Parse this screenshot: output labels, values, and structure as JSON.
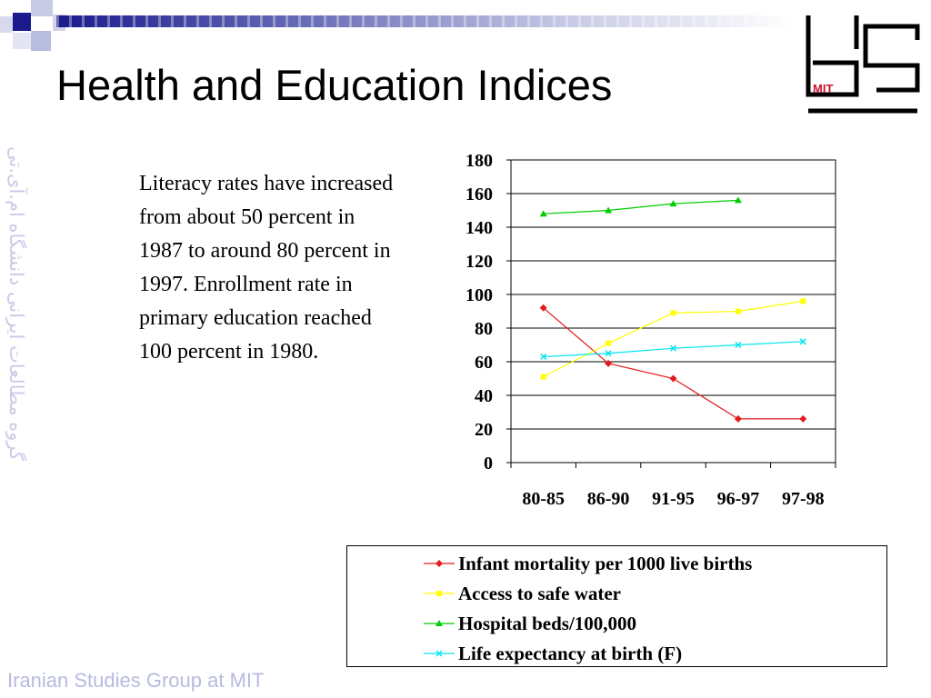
{
  "slide": {
    "title": "Health and Education Indices",
    "body_text": "Literacy rates have increased from about 50 percent in 1987 to around 80 percent in 1997. Enrollment rate in primary education reached 100 percent in 1980.",
    "footer": "Iranian Studies Group at MIT",
    "side_text": "گروه مطالعات ایرانی دانشگاه ام.آی.تی",
    "logo_text": "MIT",
    "colors": {
      "accent": "#1a1a8c",
      "logo_red": "#c8102e",
      "footer": "#b7bbdf"
    }
  },
  "chart_data": {
    "type": "line",
    "categories": [
      "80-85",
      "86-90",
      "91-95",
      "96-97",
      "97-98"
    ],
    "ylim": [
      0,
      180
    ],
    "yticks": [
      0,
      20,
      40,
      60,
      80,
      100,
      120,
      140,
      160,
      180
    ],
    "grid": true,
    "legend_position": "bottom",
    "series": [
      {
        "name": "Infant mortality per 1000 live births",
        "color": "#e41a1c",
        "marker": "diamond",
        "values": [
          92,
          59,
          50,
          26,
          26
        ]
      },
      {
        "name": "Access to safe water",
        "color": "#ffff00",
        "marker": "square",
        "values": [
          51,
          71,
          89,
          90,
          96
        ]
      },
      {
        "name": "Hospital beds/100,000",
        "color": "#00cc00",
        "marker": "triangle",
        "values": [
          148,
          150,
          154,
          156,
          null
        ]
      },
      {
        "name": "Life expectancy at birth (F)",
        "color": "#00e5ee",
        "marker": "x",
        "values": [
          63,
          65,
          68,
          70,
          72
        ]
      }
    ]
  }
}
